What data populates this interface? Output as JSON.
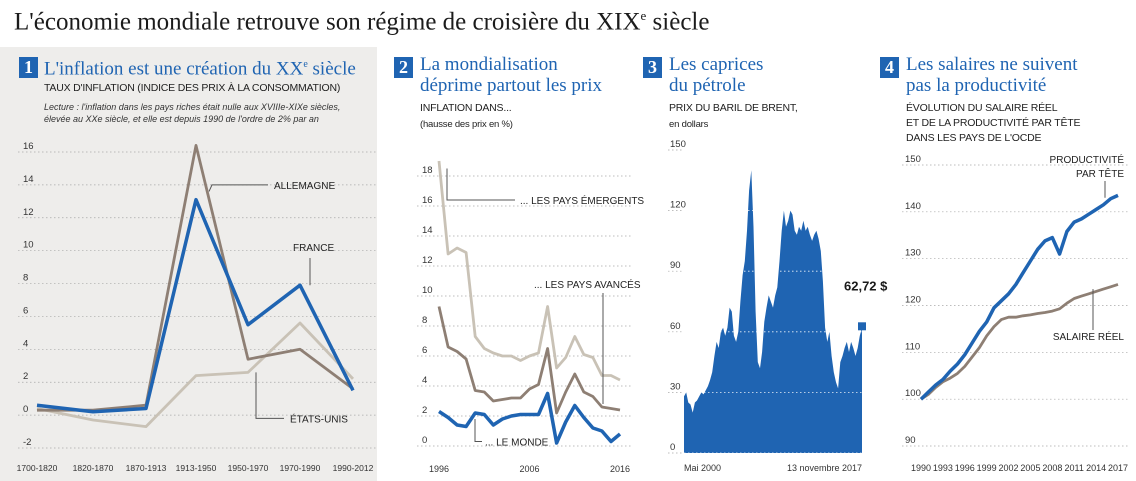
{
  "headline": {
    "main": "L'économie mondiale retrouve son régime de croisière du XIX",
    "sup": "e",
    "end": " siècle"
  },
  "panels": [
    {
      "number": "1",
      "title": {
        "main": "L'inflation est une création du XX",
        "sup": "e",
        "end": " siècle"
      },
      "subtitle": "TAUX D'INFLATION (INDICE DES PRIX À LA CONSOMMATION)",
      "note_lines": [
        "Lecture : l'inflation dans les pays riches était nulle aux XVIIIe-XIXe siècles,",
        "élevée au XXe siècle, et elle est depuis 1990 de l'ordre de 2% par an"
      ]
    },
    {
      "number": "2",
      "title_lines": [
        "La mondialisation",
        "déprime partout les prix"
      ],
      "subtitle_lines": [
        "INFLATION DANS...",
        "(hausse des prix en %)"
      ]
    },
    {
      "number": "3",
      "title_lines": [
        "Les caprices",
        "du pétrole"
      ],
      "subtitle_lines": [
        "PRIX DU BARIL DE BRENT,",
        "en dollars"
      ]
    },
    {
      "number": "4",
      "title_lines": [
        "Les salaires ne suivent",
        "pas la productivité"
      ],
      "subtitle_lines": [
        "ÉVOLUTION DU SALAIRE RÉEL",
        "ET DE LA PRODUCTIVITÉ PAR TÊTE",
        "DANS LES PAYS DE L'OCDE"
      ]
    }
  ],
  "colors": {
    "blue": "#1f64b2",
    "brown": "#8e7f74",
    "light": "#c9c2b6",
    "grid": "#9a9a9a"
  },
  "chart_data": [
    {
      "type": "line",
      "categories": [
        "1700-1820",
        "1820-1870",
        "1870-1913",
        "1913-1950",
        "1950-1970",
        "1970-1990",
        "1990-2012"
      ],
      "ylim": [
        -2,
        16
      ],
      "yticks": [
        -2,
        0,
        2,
        4,
        6,
        8,
        10,
        12,
        14,
        16
      ],
      "grid": true,
      "series": [
        {
          "name": "ALLEMAGNE",
          "color": "#8e7f74",
          "values": [
            0.3,
            0.3,
            0.6,
            16.4,
            3.4,
            4.0,
            1.6
          ]
        },
        {
          "name": "FRANCE",
          "color": "#1f64b2",
          "values": [
            0.6,
            0.2,
            0.4,
            13.1,
            5.5,
            7.9,
            1.5
          ]
        },
        {
          "name": "ÉTATS-UNIS",
          "color": "#c9c2b6",
          "values": [
            0.4,
            -0.3,
            -0.7,
            2.4,
            2.6,
            5.6,
            2.2
          ]
        }
      ]
    },
    {
      "type": "line",
      "x": [
        1996,
        1997,
        1998,
        1999,
        2000,
        2001,
        2002,
        2003,
        2004,
        2005,
        2006,
        2007,
        2008,
        2009,
        2010,
        2011,
        2012,
        2013,
        2014,
        2015,
        2016
      ],
      "xticks": [
        1996,
        2006,
        2016
      ],
      "ylim": [
        0,
        18
      ],
      "yticks": [
        0,
        2,
        4,
        6,
        8,
        10,
        12,
        14,
        16,
        18
      ],
      "grid": true,
      "series": [
        {
          "name": "... LES PAYS ÉMERGENTS",
          "color": "#c9c2b6",
          "values": [
            19.0,
            12.8,
            13.2,
            12.9,
            7.3,
            6.5,
            6.2,
            6.0,
            6.0,
            5.7,
            6.0,
            6.2,
            9.3,
            5.2,
            5.9,
            7.3,
            6.1,
            5.9,
            4.7,
            4.7,
            4.4
          ]
        },
        {
          "name": "... LES PAYS AVANCÉS",
          "color": "#8e7f74",
          "values": [
            9.3,
            6.6,
            6.3,
            5.8,
            3.7,
            3.6,
            3.0,
            3.1,
            3.2,
            3.2,
            3.8,
            4.1,
            6.5,
            2.2,
            3.6,
            4.8,
            3.6,
            3.3,
            2.6,
            2.5,
            2.4
          ]
        },
        {
          "name": "... LE MONDE",
          "color": "#1f64b2",
          "values": [
            2.3,
            1.9,
            1.4,
            1.3,
            2.2,
            2.1,
            1.4,
            1.8,
            2.0,
            2.1,
            2.1,
            2.1,
            3.5,
            0.2,
            1.6,
            2.7,
            1.9,
            1.2,
            1.0,
            0.3,
            0.8
          ]
        }
      ]
    },
    {
      "type": "area",
      "x_labels": [
        "Mai 2000",
        "13 novembre 2017"
      ],
      "ylim": [
        0,
        150
      ],
      "yticks": [
        0,
        30,
        60,
        90,
        120,
        150
      ],
      "grid": true,
      "series": [
        {
          "name": "Brent",
          "color": "#1f64b2",
          "values": [
            28,
            30,
            25,
            24,
            20,
            25,
            26,
            28,
            30,
            29,
            31,
            33,
            36,
            40,
            48,
            55,
            52,
            60,
            62,
            58,
            62,
            72,
            70,
            58,
            55,
            60,
            75,
            88,
            95,
            110,
            130,
            140,
            112,
            70,
            45,
            42,
            50,
            65,
            72,
            78,
            75,
            72,
            78,
            82,
            95,
            110,
            120,
            112,
            115,
            120,
            118,
            110,
            108,
            112,
            110,
            115,
            110,
            112,
            108,
            105,
            108,
            110,
            106,
            100,
            85,
            62,
            55,
            60,
            48,
            40,
            35,
            32,
            45,
            48,
            52,
            55,
            50,
            55,
            52,
            48,
            52,
            58,
            62
          ]
        }
      ],
      "last_value_label": "62,72 $",
      "last_value": 62.72
    },
    {
      "type": "line",
      "x": [
        1990,
        1991,
        1992,
        1993,
        1994,
        1995,
        1996,
        1997,
        1998,
        1999,
        2000,
        2001,
        2002,
        2003,
        2004,
        2005,
        2006,
        2007,
        2008,
        2009,
        2010,
        2011,
        2012,
        2013,
        2014,
        2015,
        2016,
        2017
      ],
      "xticks": [
        1990,
        1993,
        1996,
        1999,
        2002,
        2005,
        2008,
        2011,
        2014,
        2017
      ],
      "ylim": [
        90,
        150
      ],
      "yticks": [
        90,
        100,
        110,
        120,
        130,
        140,
        150
      ],
      "grid": true,
      "series": [
        {
          "name": "PRODUCTIVITÉ PAR TÊTE",
          "color": "#1f64b2",
          "values": [
            100,
            101.5,
            103,
            104.2,
            106,
            107.5,
            109.5,
            112,
            114.5,
            116.5,
            119.5,
            121,
            122.5,
            124.5,
            127,
            129.5,
            132,
            133.8,
            134.5,
            131,
            135.8,
            137.8,
            138.5,
            139.5,
            140.5,
            141.5,
            142.8,
            143.5
          ]
        },
        {
          "name": "SALAIRE RÉEL",
          "color": "#8e7f74",
          "values": [
            100,
            101,
            102.5,
            103.7,
            104.5,
            105.5,
            107,
            109,
            111,
            113.5,
            115.5,
            117,
            117.5,
            117.5,
            117.8,
            118,
            118.3,
            118.5,
            118.8,
            119.3,
            120.5,
            121.5,
            122,
            122.5,
            123,
            123.5,
            124,
            124.5
          ]
        }
      ]
    }
  ]
}
